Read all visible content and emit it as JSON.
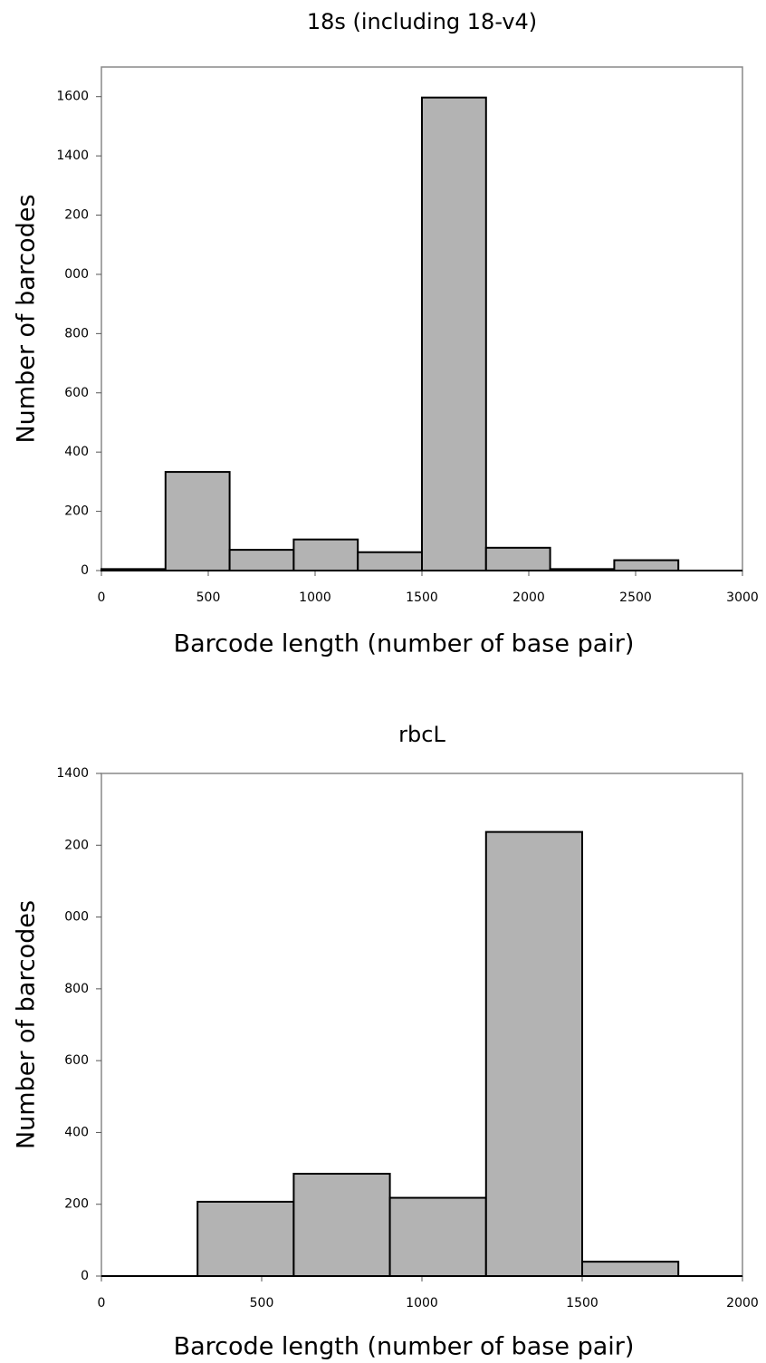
{
  "chart_data": [
    {
      "type": "histogram",
      "title": "18s (including 18-v4)",
      "xlabel": "Barcode length (number of base pair)",
      "ylabel": "Number of barcodes",
      "bins": [
        0,
        300,
        600,
        900,
        1200,
        1500,
        1800,
        2100,
        2400,
        2700
      ],
      "values": [
        5,
        333,
        70,
        105,
        62,
        1597,
        77,
        5,
        35
      ],
      "color": "#b3b3b3",
      "xlim": [
        0,
        3000
      ],
      "xticks": [
        0,
        500,
        1000,
        1500,
        2000,
        2500,
        3000
      ],
      "ylim": [
        0,
        1700
      ],
      "yticks": [
        0,
        200,
        400,
        600,
        800,
        {
          "value": 1000,
          "label": "000"
        },
        {
          "value": 1200,
          "label": "200"
        },
        1400,
        1600
      ]
    },
    {
      "type": "histogram",
      "title": "rbcL",
      "xlabel": "Barcode length (number of base pair)",
      "ylabel": "Number of barcodes",
      "bins": [
        0,
        300,
        600,
        900,
        1200,
        1500,
        1800
      ],
      "values": [
        0,
        207,
        285,
        218,
        1237,
        40
      ],
      "color": "#b3b3b3",
      "xlim": [
        0,
        2000
      ],
      "xticks": [
        0,
        500,
        1000,
        1500,
        2000
      ],
      "ylim": [
        0,
        1400
      ],
      "yticks": [
        0,
        200,
        400,
        600,
        800,
        {
          "value": 1000,
          "label": "000"
        },
        {
          "value": 1200,
          "label": "200"
        },
        1400
      ]
    }
  ]
}
